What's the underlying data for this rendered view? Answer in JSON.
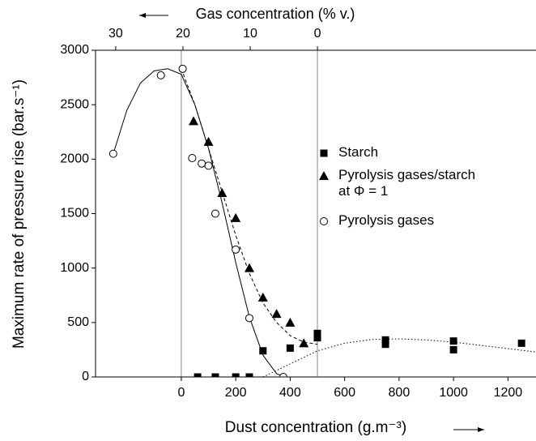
{
  "chart_data": {
    "type": "scatter",
    "xlabel": "Dust concentration (g.m⁻³)",
    "ylabel": "Maximum rate of pressure rise (bar.s⁻¹)",
    "x2label": "Gas concentration (% v.)",
    "xlim": [
      -315,
      1303
    ],
    "xticks": [
      0,
      200,
      400,
      600,
      800,
      1000,
      1200
    ],
    "x2lim": [
      33,
      -32.5
    ],
    "x2ticks": [
      30,
      20,
      10,
      0
    ],
    "ylim": [
      0,
      3000
    ],
    "yticks": [
      0,
      500,
      1000,
      1500,
      2000,
      2500,
      3000
    ],
    "reference_lines_x": [
      0,
      500
    ],
    "legend": "right",
    "series": [
      {
        "name": "Starch",
        "marker": "square",
        "color": "#000000",
        "x": [
          60,
          125,
          200,
          250,
          300,
          400,
          500,
          500,
          750,
          750,
          1000,
          1000,
          1250
        ],
        "values": [
          0,
          0,
          0,
          0,
          240,
          265,
          360,
          400,
          340,
          300,
          330,
          250,
          310
        ]
      },
      {
        "name": "Pyrolysis gases/starch at Φ = 1",
        "marker": "triangle",
        "color": "#000000",
        "x": [
          45,
          100,
          150,
          200,
          250,
          300,
          350,
          400,
          450
        ],
        "values": [
          2350,
          2160,
          1690,
          1460,
          1000,
          730,
          580,
          500,
          310
        ]
      },
      {
        "name": "Pyrolysis gases",
        "marker": "circle",
        "color": "#000000",
        "x": [
          -250,
          -75,
          5,
          40,
          75,
          100,
          125,
          200,
          250,
          375
        ],
        "values": [
          2050,
          2770,
          2830,
          2010,
          1960,
          1940,
          1500,
          1170,
          540,
          0
        ]
      }
    ],
    "fit_curves": [
      {
        "style": "solid",
        "x": [
          -250,
          -200,
          -150,
          -100,
          -50,
          0,
          50,
          100,
          150,
          200,
          250,
          300,
          350,
          380
        ],
        "values": [
          2050,
          2450,
          2700,
          2810,
          2830,
          2780,
          2500,
          2100,
          1600,
          1050,
          550,
          200,
          30,
          0
        ]
      },
      {
        "style": "dashed",
        "x": [
          0,
          50,
          100,
          150,
          200,
          250,
          300,
          350,
          400,
          450,
          500
        ],
        "values": [
          2830,
          2500,
          2100,
          1700,
          1300,
          950,
          680,
          500,
          380,
          320,
          300
        ]
      },
      {
        "style": "dotted",
        "x": [
          300,
          400,
          500,
          600,
          700,
          800,
          900,
          1000,
          1100,
          1200,
          1300
        ],
        "values": [
          0,
          120,
          240,
          310,
          345,
          350,
          340,
          320,
          290,
          260,
          230
        ]
      }
    ]
  }
}
